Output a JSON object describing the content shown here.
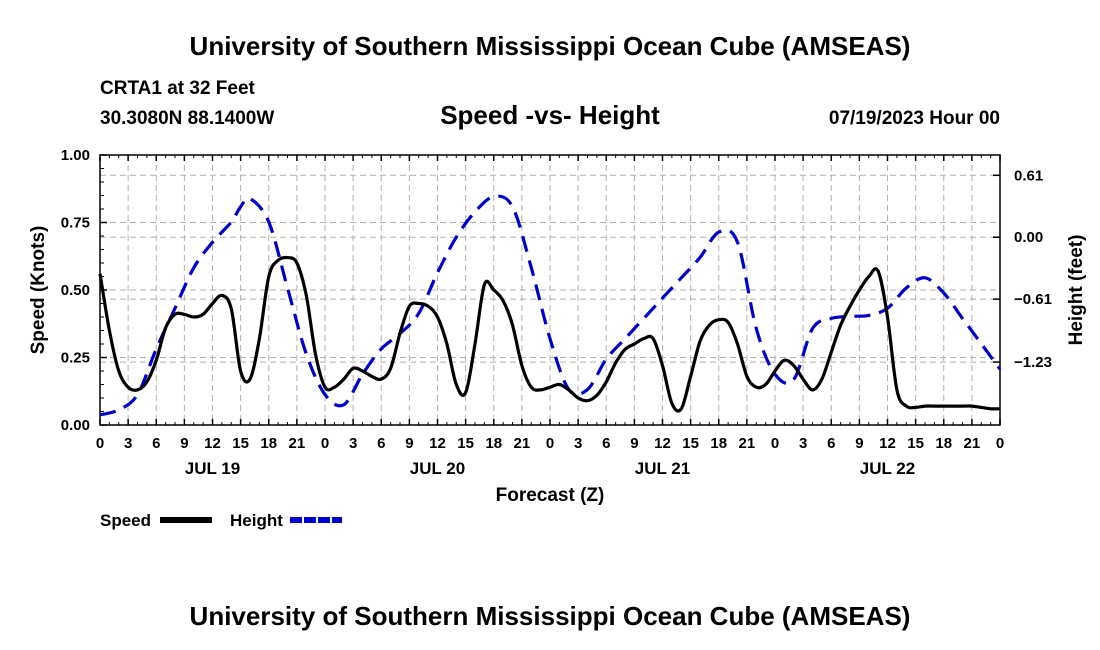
{
  "header": {
    "title": "University of Southern Mississippi Ocean Cube (AMSEAS)",
    "station": "CRTA1 at 32 Feet",
    "coords": "30.3080N  88.1400W",
    "chart_title": "Speed -vs- Height",
    "date": "07/19/2023 Hour 00"
  },
  "footer": {
    "title": "University of Southern Mississippi Ocean Cube (AMSEAS)"
  },
  "colors": {
    "speed": "#000000",
    "height": "#0000cc",
    "grid": "#b0b0b0"
  },
  "chart_data": {
    "type": "line",
    "title": "Speed -vs- Height",
    "xlabel": "Forecast (Z)",
    "ylabel": "Speed (Knots)",
    "y2label": "Height (feet)",
    "x_range": [
      0,
      96
    ],
    "ylim": [
      0,
      1.0
    ],
    "y2lim": [
      -1.85,
      0.81
    ],
    "x_ticks": [
      0,
      3,
      6,
      9,
      12,
      15,
      18,
      21,
      24,
      27,
      30,
      33,
      36,
      39,
      42,
      45,
      48,
      51,
      54,
      57,
      60,
      63,
      66,
      69,
      72,
      75,
      78,
      81,
      84,
      87,
      90,
      93,
      96
    ],
    "x_tick_labels": [
      "0",
      "3",
      "6",
      "9",
      "12",
      "15",
      "18",
      "21",
      "0",
      "3",
      "6",
      "9",
      "12",
      "15",
      "18",
      "21",
      "0",
      "3",
      "6",
      "9",
      "12",
      "15",
      "18",
      "21",
      "0",
      "3",
      "6",
      "9",
      "12",
      "15",
      "18",
      "21",
      "0"
    ],
    "day_labels": [
      {
        "x": 12,
        "label": "JUL 19"
      },
      {
        "x": 36,
        "label": "JUL 20"
      },
      {
        "x": 60,
        "label": "JUL 21"
      },
      {
        "x": 84,
        "label": "JUL 22"
      }
    ],
    "y_ticks": [
      0.0,
      0.25,
      0.5,
      0.75,
      1.0
    ],
    "y_tick_labels": [
      "0.00",
      "0.25",
      "0.50",
      "0.75",
      "1.00"
    ],
    "y2_ticks": [
      0.61,
      0.0,
      -0.61,
      -1.23
    ],
    "y2_tick_labels": [
      "0.61",
      "0.00",
      "−0.61",
      "−1.23"
    ],
    "grid": true,
    "legend": "bottom-left",
    "series": [
      {
        "name": "Speed",
        "axis": "left",
        "style": "solid",
        "x": [
          0,
          1,
          2,
          3,
          4,
          5,
          6,
          7,
          8,
          9,
          10,
          11,
          12,
          13,
          14,
          15,
          16,
          17,
          18,
          19,
          20,
          21,
          22,
          23,
          24,
          25,
          26,
          27,
          28,
          29,
          30,
          31,
          32,
          33,
          34,
          35,
          36,
          37,
          38,
          39,
          40,
          41,
          42,
          43,
          44,
          45,
          46,
          47,
          48,
          49,
          50,
          51,
          52,
          53,
          54,
          55,
          56,
          57,
          58,
          59,
          60,
          61,
          62,
          63,
          64,
          65,
          66,
          67,
          68,
          69,
          70,
          71,
          72,
          73,
          74,
          75,
          76,
          77,
          78,
          79,
          80,
          81,
          82,
          83,
          84,
          85,
          86,
          87,
          88,
          89,
          90,
          91,
          92,
          93,
          94,
          95,
          96
        ],
        "values": [
          0.56,
          0.35,
          0.2,
          0.14,
          0.13,
          0.16,
          0.24,
          0.36,
          0.41,
          0.41,
          0.4,
          0.41,
          0.45,
          0.48,
          0.43,
          0.2,
          0.17,
          0.32,
          0.55,
          0.61,
          0.62,
          0.6,
          0.48,
          0.26,
          0.14,
          0.14,
          0.17,
          0.21,
          0.2,
          0.18,
          0.17,
          0.21,
          0.34,
          0.44,
          0.45,
          0.44,
          0.4,
          0.3,
          0.15,
          0.12,
          0.3,
          0.52,
          0.5,
          0.46,
          0.37,
          0.22,
          0.14,
          0.13,
          0.14,
          0.15,
          0.13,
          0.1,
          0.09,
          0.11,
          0.16,
          0.23,
          0.28,
          0.3,
          0.32,
          0.32,
          0.22,
          0.08,
          0.06,
          0.18,
          0.31,
          0.37,
          0.39,
          0.38,
          0.3,
          0.18,
          0.14,
          0.15,
          0.2,
          0.24,
          0.22,
          0.17,
          0.13,
          0.17,
          0.27,
          0.37,
          0.44,
          0.5,
          0.55,
          0.57,
          0.4,
          0.13,
          0.07,
          0.065,
          0.07,
          0.07,
          0.07,
          0.07,
          0.07,
          0.07,
          0.065,
          0.06,
          0.06
        ]
      },
      {
        "name": "Height",
        "axis": "right",
        "style": "dashed",
        "x": [
          0,
          2,
          4,
          6,
          8,
          10,
          12,
          14,
          15,
          16,
          18,
          20,
          22,
          24,
          26,
          28,
          30,
          32,
          34,
          36,
          38,
          40,
          42,
          44,
          46,
          48,
          50,
          52,
          54,
          56,
          58,
          60,
          62,
          64,
          66,
          68,
          70,
          72,
          74,
          76,
          78,
          80,
          82,
          84,
          86,
          88,
          90,
          92,
          94,
          96
        ],
        "values": [
          -1.75,
          -1.7,
          -1.55,
          -1.1,
          -0.7,
          -0.3,
          -0.05,
          0.15,
          0.3,
          0.38,
          0.15,
          -0.5,
          -1.15,
          -1.55,
          -1.65,
          -1.35,
          -1.1,
          -0.95,
          -0.75,
          -0.35,
          0.0,
          0.25,
          0.4,
          0.3,
          -0.3,
          -1.0,
          -1.5,
          -1.5,
          -1.2,
          -1.0,
          -0.8,
          -0.6,
          -0.4,
          -0.2,
          0.05,
          -0.05,
          -0.9,
          -1.35,
          -1.4,
          -0.9,
          -0.8,
          -0.78,
          -0.77,
          -0.7,
          -0.5,
          -0.4,
          -0.55,
          -0.8,
          -1.05,
          -1.3
        ]
      }
    ]
  }
}
